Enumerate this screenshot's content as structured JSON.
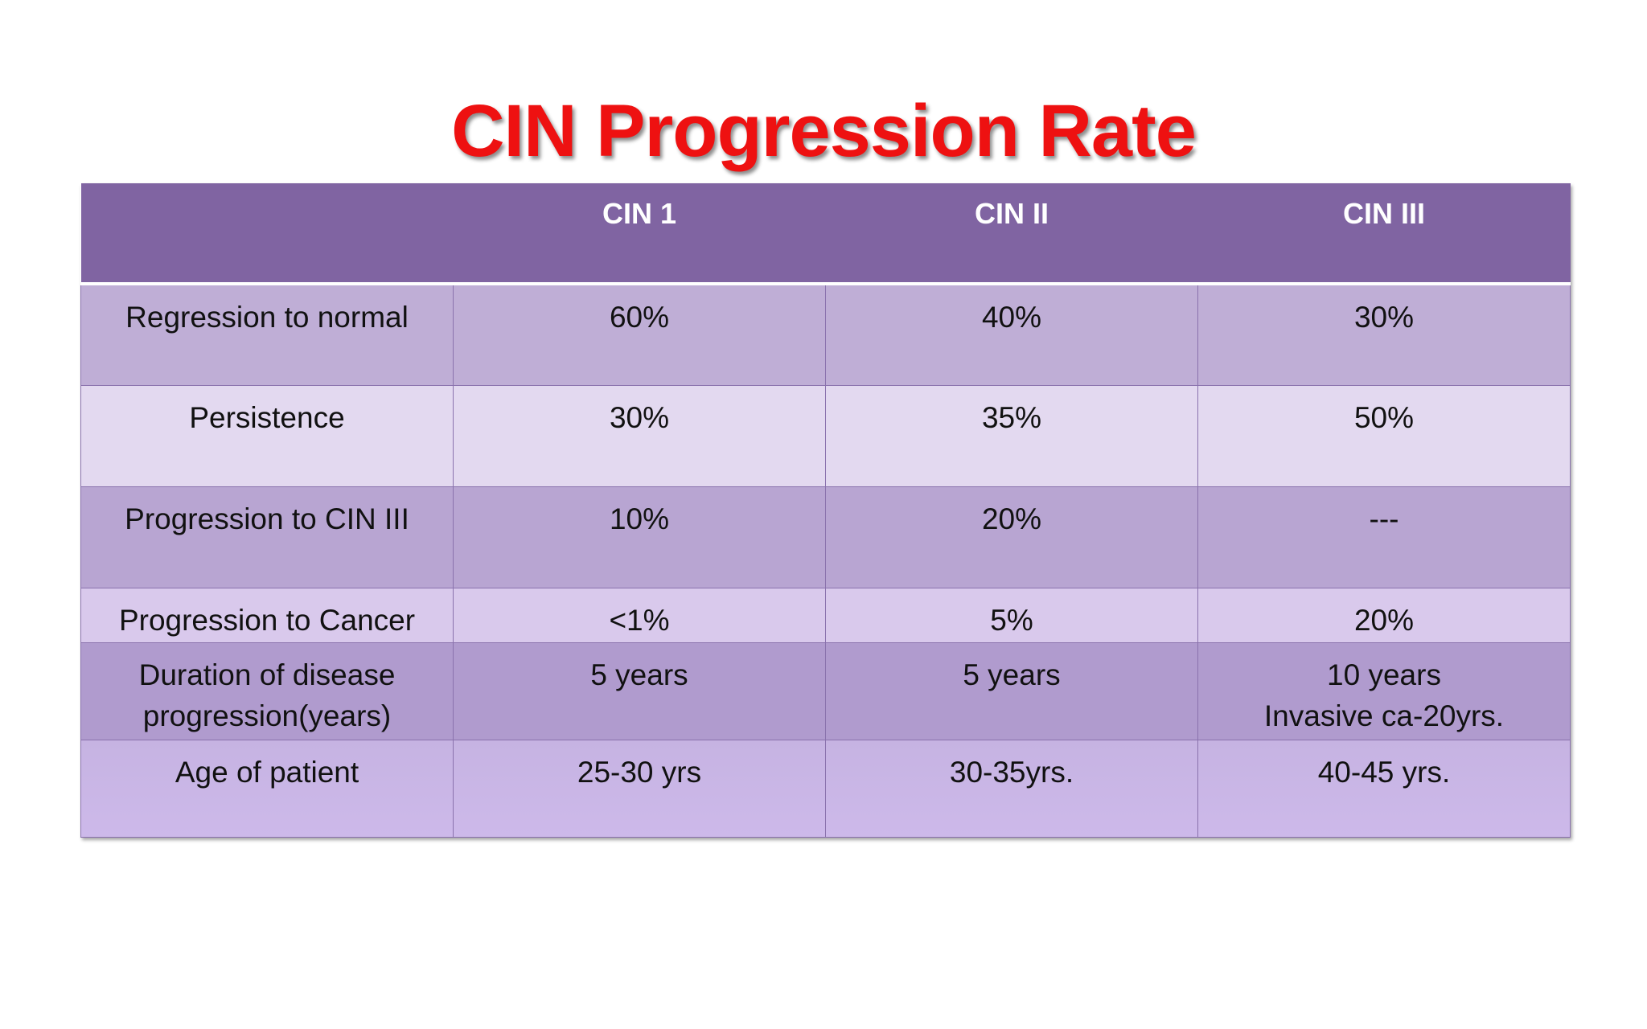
{
  "title": "CIN Progression Rate",
  "table": {
    "header": [
      "CIN 1",
      "CIN II",
      "CIN III"
    ],
    "rows": [
      {
        "label": [
          "Regression to normal"
        ],
        "cells": [
          [
            "60%"
          ],
          [
            "40%"
          ],
          [
            "30%"
          ]
        ]
      },
      {
        "label": [
          "Persistence"
        ],
        "cells": [
          [
            "30%"
          ],
          [
            "35%"
          ],
          [
            "50%"
          ]
        ]
      },
      {
        "label": [
          "Progression to CIN III"
        ],
        "cells": [
          [
            "10%"
          ],
          [
            "20%"
          ],
          [
            "---"
          ]
        ]
      },
      {
        "label": [
          "Progression to Cancer"
        ],
        "cells": [
          [
            "<1%"
          ],
          [
            "5%"
          ],
          [
            "20%"
          ]
        ]
      },
      {
        "label": [
          "Duration of disease",
          "progression(years)"
        ],
        "cells": [
          [
            "5 years"
          ],
          [
            "5 years"
          ],
          [
            "10 years",
            "Invasive ca-20yrs."
          ]
        ]
      },
      {
        "label": [
          "Age of patient"
        ],
        "cells": [
          [
            "25-30 yrs"
          ],
          [
            "30-35yrs."
          ],
          [
            "40-45 yrs."
          ]
        ]
      }
    ]
  }
}
